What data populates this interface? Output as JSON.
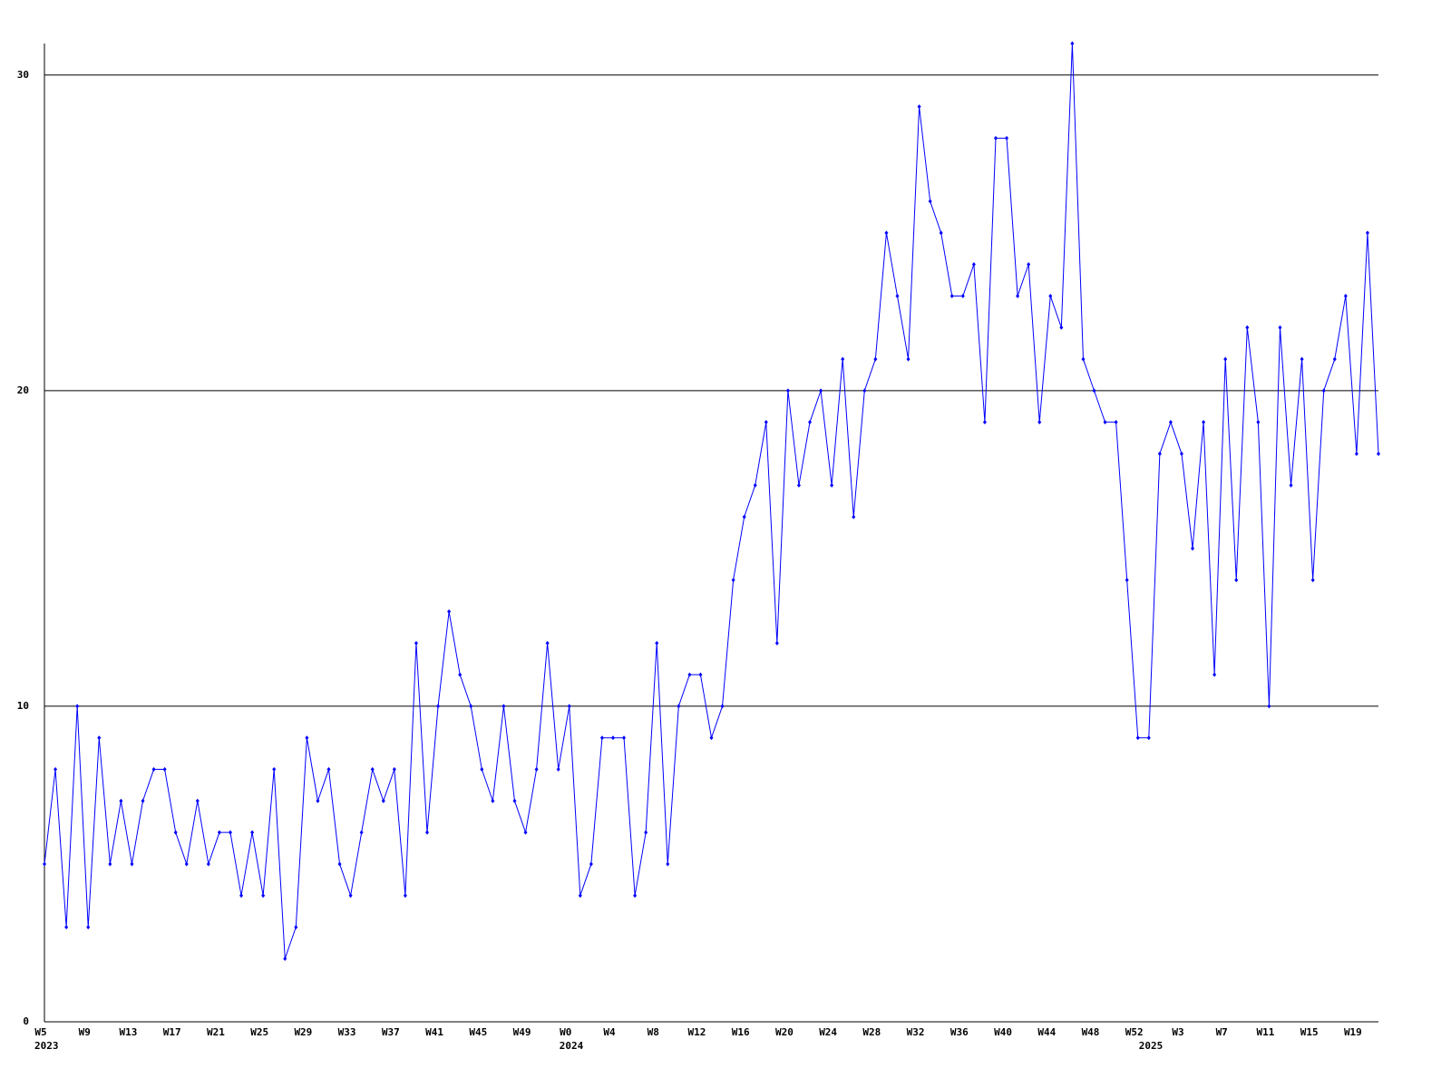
{
  "chart_data": {
    "type": "line",
    "categories": [
      "W5",
      null,
      null,
      null,
      "W9",
      null,
      null,
      null,
      "W13",
      null,
      null,
      null,
      "W17",
      null,
      null,
      null,
      "W21",
      null,
      null,
      null,
      "W25",
      null,
      null,
      null,
      "W29",
      null,
      null,
      null,
      "W33",
      null,
      null,
      null,
      "W37",
      null,
      null,
      null,
      "W41",
      null,
      null,
      null,
      "W45",
      null,
      null,
      null,
      "W49",
      null,
      null,
      null,
      "W0",
      null,
      null,
      null,
      "W4",
      null,
      null,
      null,
      "W8",
      null,
      null,
      null,
      "W12",
      null,
      null,
      null,
      "W16",
      null,
      null,
      null,
      "W20",
      null,
      null,
      null,
      "W24",
      null,
      null,
      null,
      "W28",
      null,
      null,
      null,
      "W32",
      null,
      null,
      null,
      "W36",
      null,
      null,
      null,
      "W40",
      null,
      null,
      null,
      "W44",
      null,
      null,
      null,
      "W48",
      null,
      null,
      null,
      "W52",
      null,
      null,
      null,
      "W3",
      null,
      null,
      null,
      "W7",
      null,
      null,
      null,
      "W11",
      null,
      null,
      null,
      "W15",
      null,
      null,
      null,
      "W19",
      null,
      null
    ],
    "category_groups": [
      "2023",
      null,
      null,
      null,
      null,
      null,
      null,
      null,
      null,
      null,
      null,
      null,
      null,
      null,
      null,
      null,
      null,
      null,
      null,
      null,
      null,
      null,
      null,
      null,
      null,
      null,
      null,
      null,
      null,
      null,
      null,
      null,
      null,
      null,
      null,
      null,
      null,
      null,
      null,
      null,
      null,
      null,
      null,
      null,
      null,
      null,
      null,
      null,
      "2024",
      null,
      null,
      null,
      null,
      null,
      null,
      null,
      null,
      null,
      null,
      null,
      null,
      null,
      null,
      null,
      null,
      null,
      null,
      null,
      null,
      null,
      null,
      null,
      null,
      null,
      null,
      null,
      null,
      null,
      null,
      null,
      null,
      null,
      null,
      null,
      null,
      null,
      null,
      null,
      null,
      null,
      null,
      null,
      null,
      null,
      null,
      null,
      null,
      null,
      null,
      null,
      null,
      "2025",
      null,
      null,
      null,
      null,
      null,
      null,
      null,
      null,
      null,
      null,
      null,
      null,
      null,
      null,
      null,
      null,
      null,
      null,
      null,
      null,
      null
    ],
    "series": [
      {
        "color": "#0000ff",
        "values": [
          5,
          8,
          3,
          10,
          3,
          9,
          5,
          7,
          5,
          7,
          8,
          8,
          6,
          5,
          7,
          5,
          6,
          6,
          4,
          6,
          4,
          8,
          2,
          3,
          9,
          7,
          8,
          5,
          4,
          6,
          8,
          7,
          8,
          4,
          12,
          6,
          10,
          13,
          11,
          10,
          8,
          7,
          10,
          7,
          6,
          8,
          12,
          8,
          10,
          4,
          5,
          9,
          9,
          9,
          4,
          6,
          12,
          5,
          10,
          11,
          11,
          9,
          10,
          14,
          16,
          17,
          19,
          12,
          20,
          17,
          19,
          20,
          17,
          21,
          16,
          20,
          21,
          25,
          23,
          21,
          29,
          26,
          25,
          23,
          23,
          24,
          19,
          28,
          28,
          23,
          24,
          19,
          23,
          22,
          31,
          21,
          20,
          19,
          19,
          14,
          9,
          9,
          18,
          19,
          18,
          15,
          19,
          11,
          21,
          14,
          22,
          19,
          10,
          22,
          17,
          21,
          14,
          20,
          21,
          23,
          18,
          25,
          18
        ]
      }
    ],
    "ylim": [
      0,
      31
    ],
    "yticks": [
      0,
      10,
      20,
      30
    ],
    "grid": true
  }
}
